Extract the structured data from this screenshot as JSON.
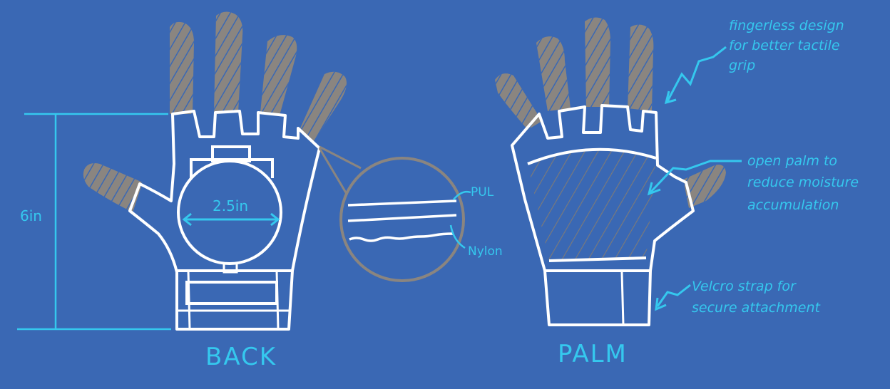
{
  "colors": {
    "background": "#3a68b4",
    "outline": "#ffffff",
    "shade": "#8a8580",
    "annotation": "#35c8ee"
  },
  "back": {
    "caption": "BACK",
    "height_label": "6in",
    "diameter_label": "2.5in"
  },
  "palm": {
    "caption": "PALM"
  },
  "layers": {
    "top_label": "PUL",
    "bottom_label": "Nylon"
  },
  "annotations": {
    "fingerless": [
      "fingerless design",
      "for better tactile",
      "grip"
    ],
    "open_palm": [
      "open palm to",
      "reduce moisture",
      "accumulation"
    ],
    "velcro": [
      "Velcro strap for",
      "secure attachment"
    ]
  }
}
